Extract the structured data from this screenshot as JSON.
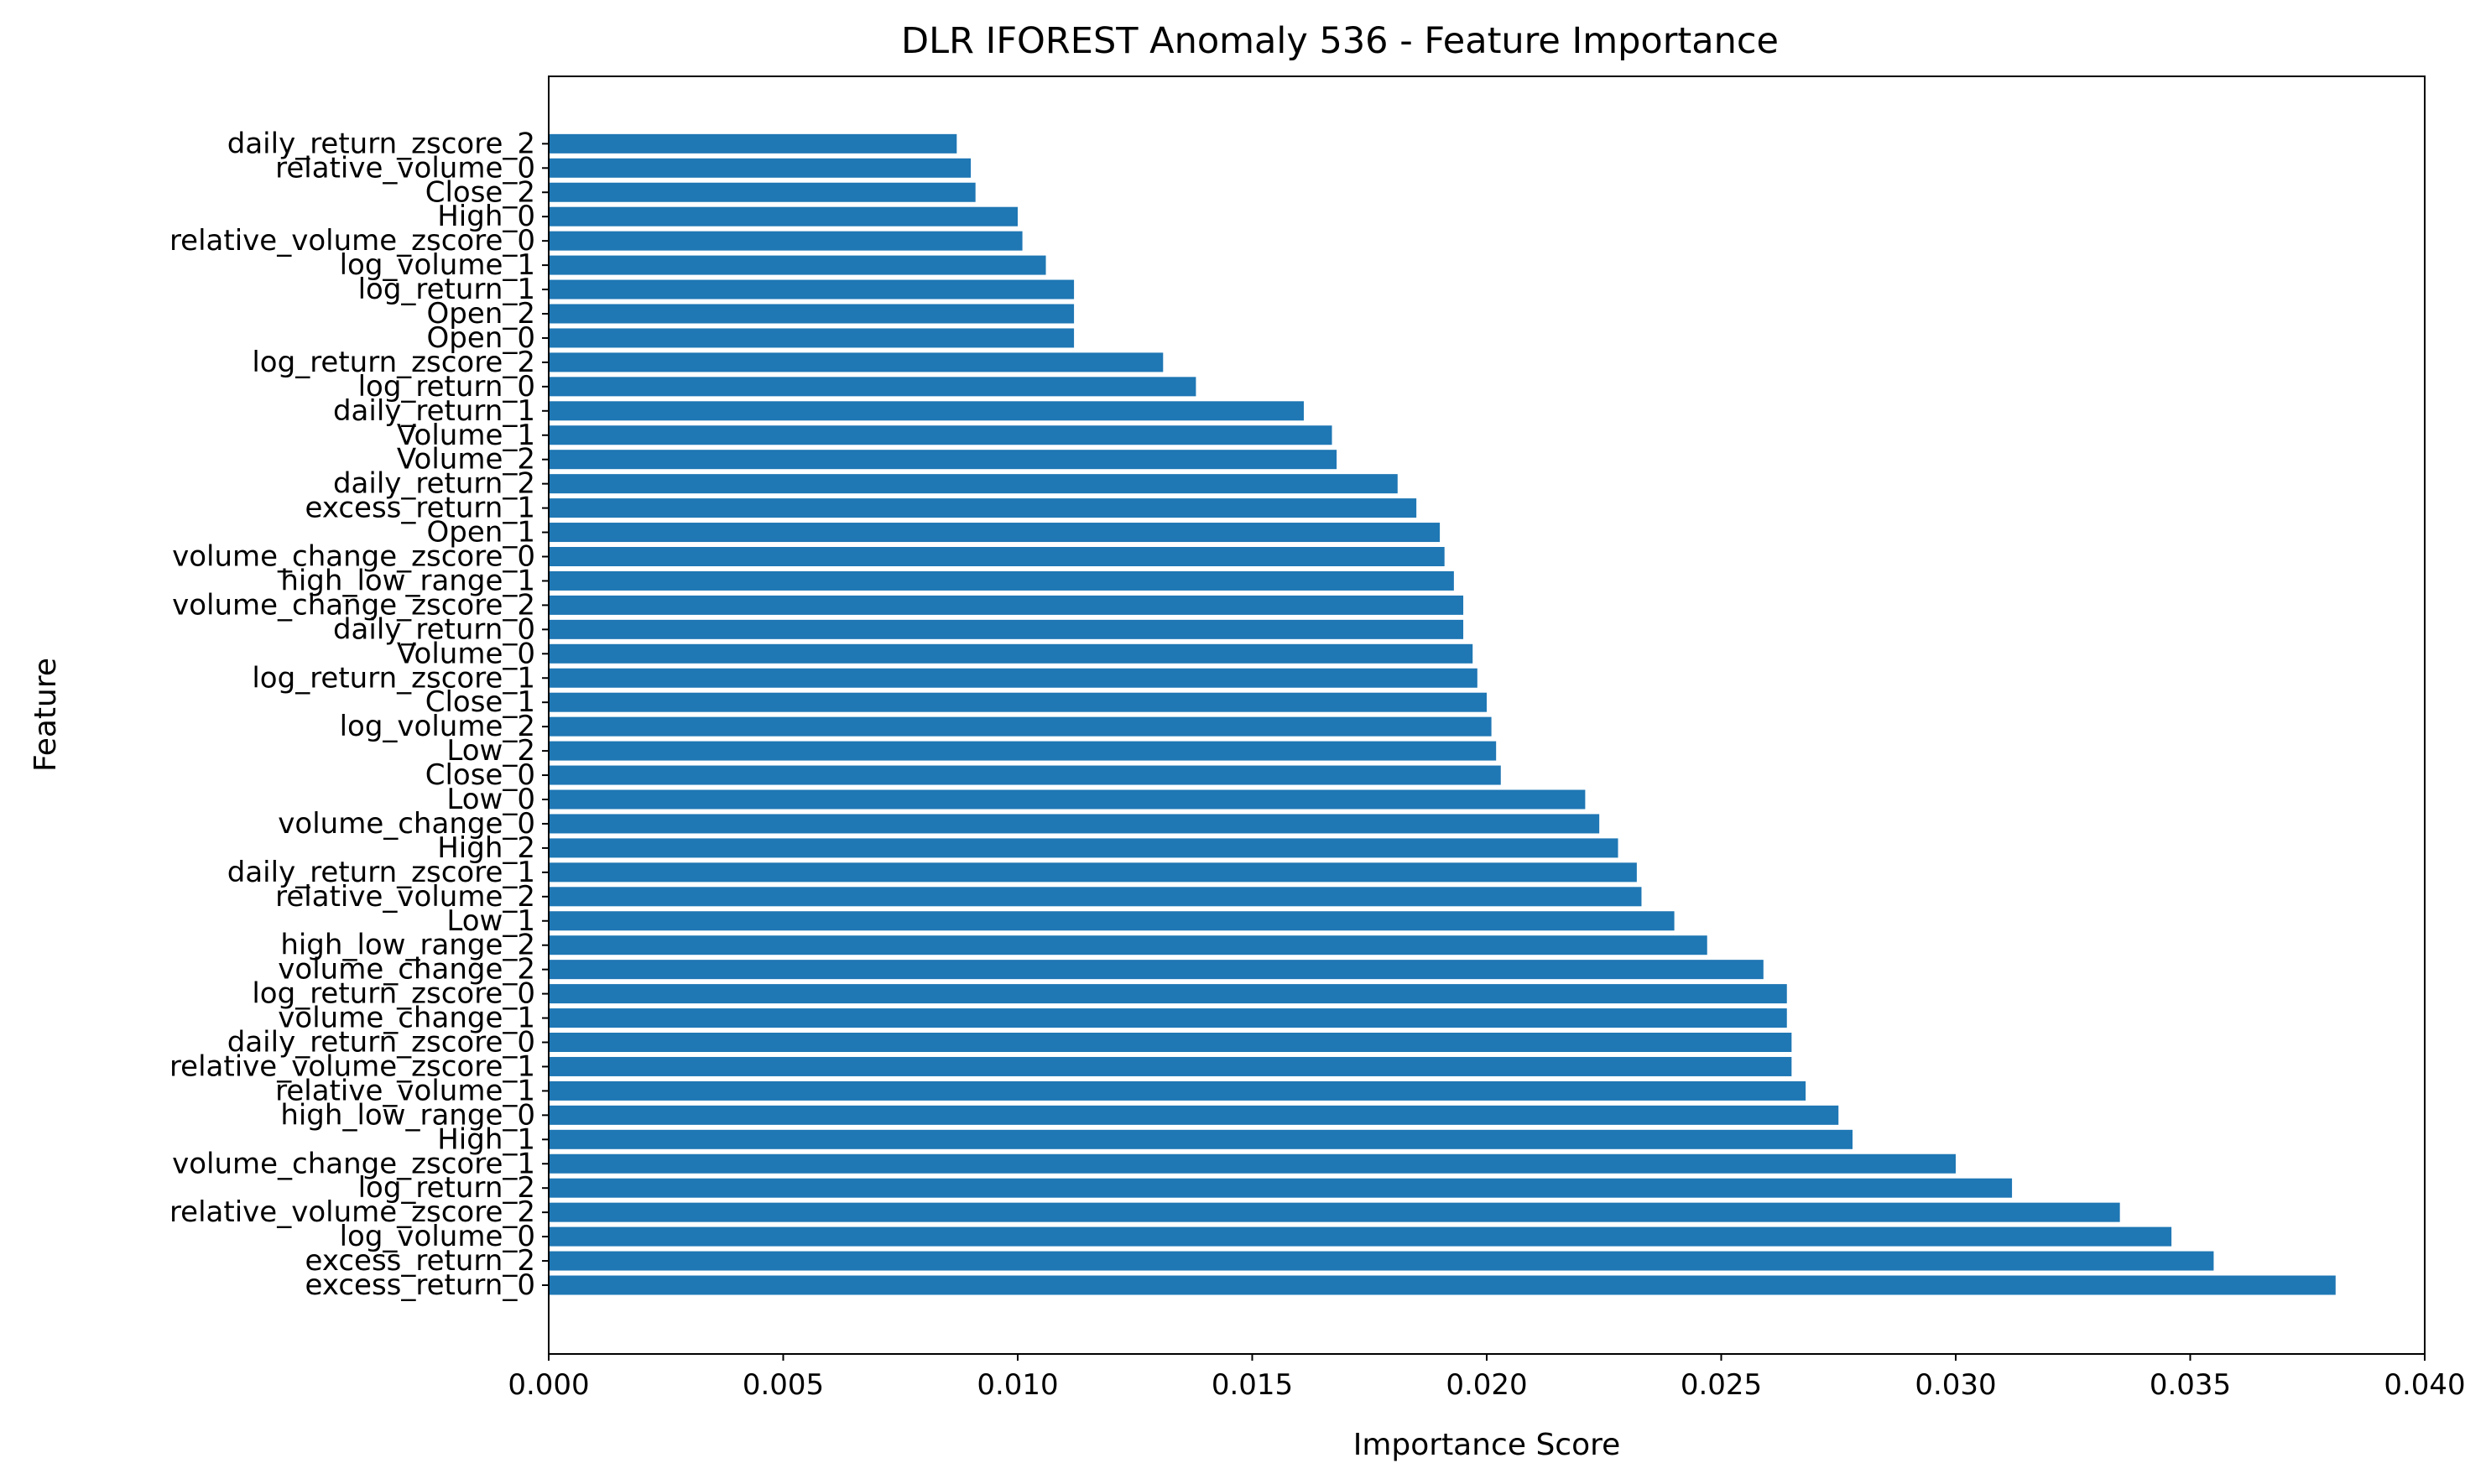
{
  "colors": {
    "bar": "#1f77b4",
    "axis": "#000000",
    "background": "#ffffff"
  },
  "chart_data": {
    "type": "bar",
    "orientation": "horizontal",
    "title": "DLR IFOREST Anomaly 536 - Feature Importance",
    "xlabel": "Importance Score",
    "ylabel": "Feature",
    "xlim": [
      0.0,
      0.04
    ],
    "xticks": [
      "0.000",
      "0.005",
      "0.010",
      "0.015",
      "0.020",
      "0.025",
      "0.030",
      "0.035",
      "0.040"
    ],
    "grid": false,
    "categories": [
      "excess_return_0",
      "excess_return_2",
      "log_volume_0",
      "relative_volume_zscore_2",
      "log_return_2",
      "volume_change_zscore_1",
      "High_1",
      "high_low_range_0",
      "relative_volume_1",
      "relative_volume_zscore_1",
      "daily_return_zscore_0",
      "volume_change_1",
      "log_return_zscore_0",
      "volume_change_2",
      "high_low_range_2",
      "Low_1",
      "relative_volume_2",
      "daily_return_zscore_1",
      "High_2",
      "volume_change_0",
      "Low_0",
      "Close_0",
      "Low_2",
      "log_volume_2",
      "Close_1",
      "log_return_zscore_1",
      "Volume_0",
      "daily_return_0",
      "volume_change_zscore_2",
      "high_low_range_1",
      "volume_change_zscore_0",
      "Open_1",
      "excess_return_1",
      "daily_return_2",
      "Volume_2",
      "Volume_1",
      "daily_return_1",
      "log_return_0",
      "log_return_zscore_2",
      "Open_0",
      "Open_2",
      "log_return_1",
      "log_volume_1",
      "relative_volume_zscore_0",
      "High_0",
      "Close_2",
      "relative_volume_0",
      "daily_return_zscore_2"
    ],
    "values": [
      0.0381,
      0.0355,
      0.0346,
      0.0335,
      0.0312,
      0.03,
      0.0278,
      0.0275,
      0.0268,
      0.0265,
      0.0265,
      0.0264,
      0.0264,
      0.0259,
      0.0247,
      0.024,
      0.0233,
      0.0232,
      0.0228,
      0.0224,
      0.0221,
      0.0203,
      0.0202,
      0.0201,
      0.02,
      0.0198,
      0.0197,
      0.0195,
      0.0195,
      0.0193,
      0.0191,
      0.019,
      0.0185,
      0.0181,
      0.0168,
      0.0167,
      0.0161,
      0.0138,
      0.0131,
      0.0112,
      0.0112,
      0.0112,
      0.0106,
      0.0101,
      0.01,
      0.0091,
      0.009,
      0.0087
    ]
  }
}
